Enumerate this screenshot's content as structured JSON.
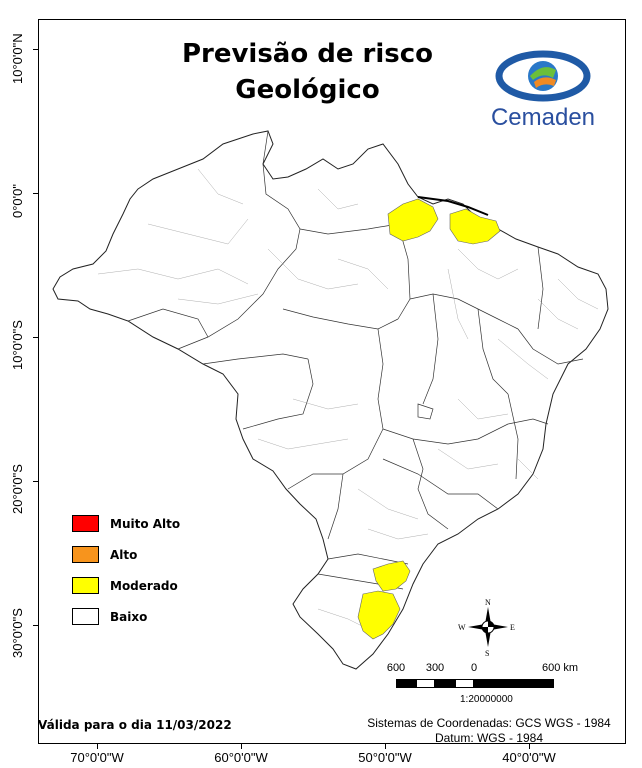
{
  "title": {
    "line1": "Previsão de risco",
    "line2": "Geológico"
  },
  "logo": {
    "name": "Cemaden"
  },
  "latitude_labels": [
    "10°0'0\"N",
    "0°0'0\"",
    "10°0'0\"S",
    "20°0'0\"S",
    "30°0'0\"S"
  ],
  "longitude_labels": [
    "70°0'0\"W",
    "60°0'0\"W",
    "50°0'0\"W",
    "40°0'0\"W"
  ],
  "legend": [
    {
      "label": "Muito Alto",
      "color": "#ff0000"
    },
    {
      "label": "Alto",
      "color": "#f7941d"
    },
    {
      "label": "Moderado",
      "color": "#ffff00"
    },
    {
      "label": "Baixo",
      "color": "#ffffff"
    }
  ],
  "valid_text": "Válida para o dia 11/03/2022",
  "coordinate_system": {
    "line1": "Sistemas de Coordenadas: GCS WGS - 1984",
    "line2": "Datum: WGS - 1984"
  },
  "scale": {
    "labels": [
      "600",
      "300",
      "0",
      "600 km"
    ],
    "ratio": "1:20000000"
  },
  "compass": {
    "n": "N",
    "s": "S",
    "e": "E",
    "w": "W"
  },
  "risk_areas": [
    {
      "region": "north-amapa-para",
      "level": "Moderado"
    },
    {
      "region": "maranhao-coast",
      "level": "Moderado"
    },
    {
      "region": "santa-catarina",
      "level": "Moderado"
    },
    {
      "region": "rio-grande-do-sul-east",
      "level": "Moderado"
    }
  ]
}
